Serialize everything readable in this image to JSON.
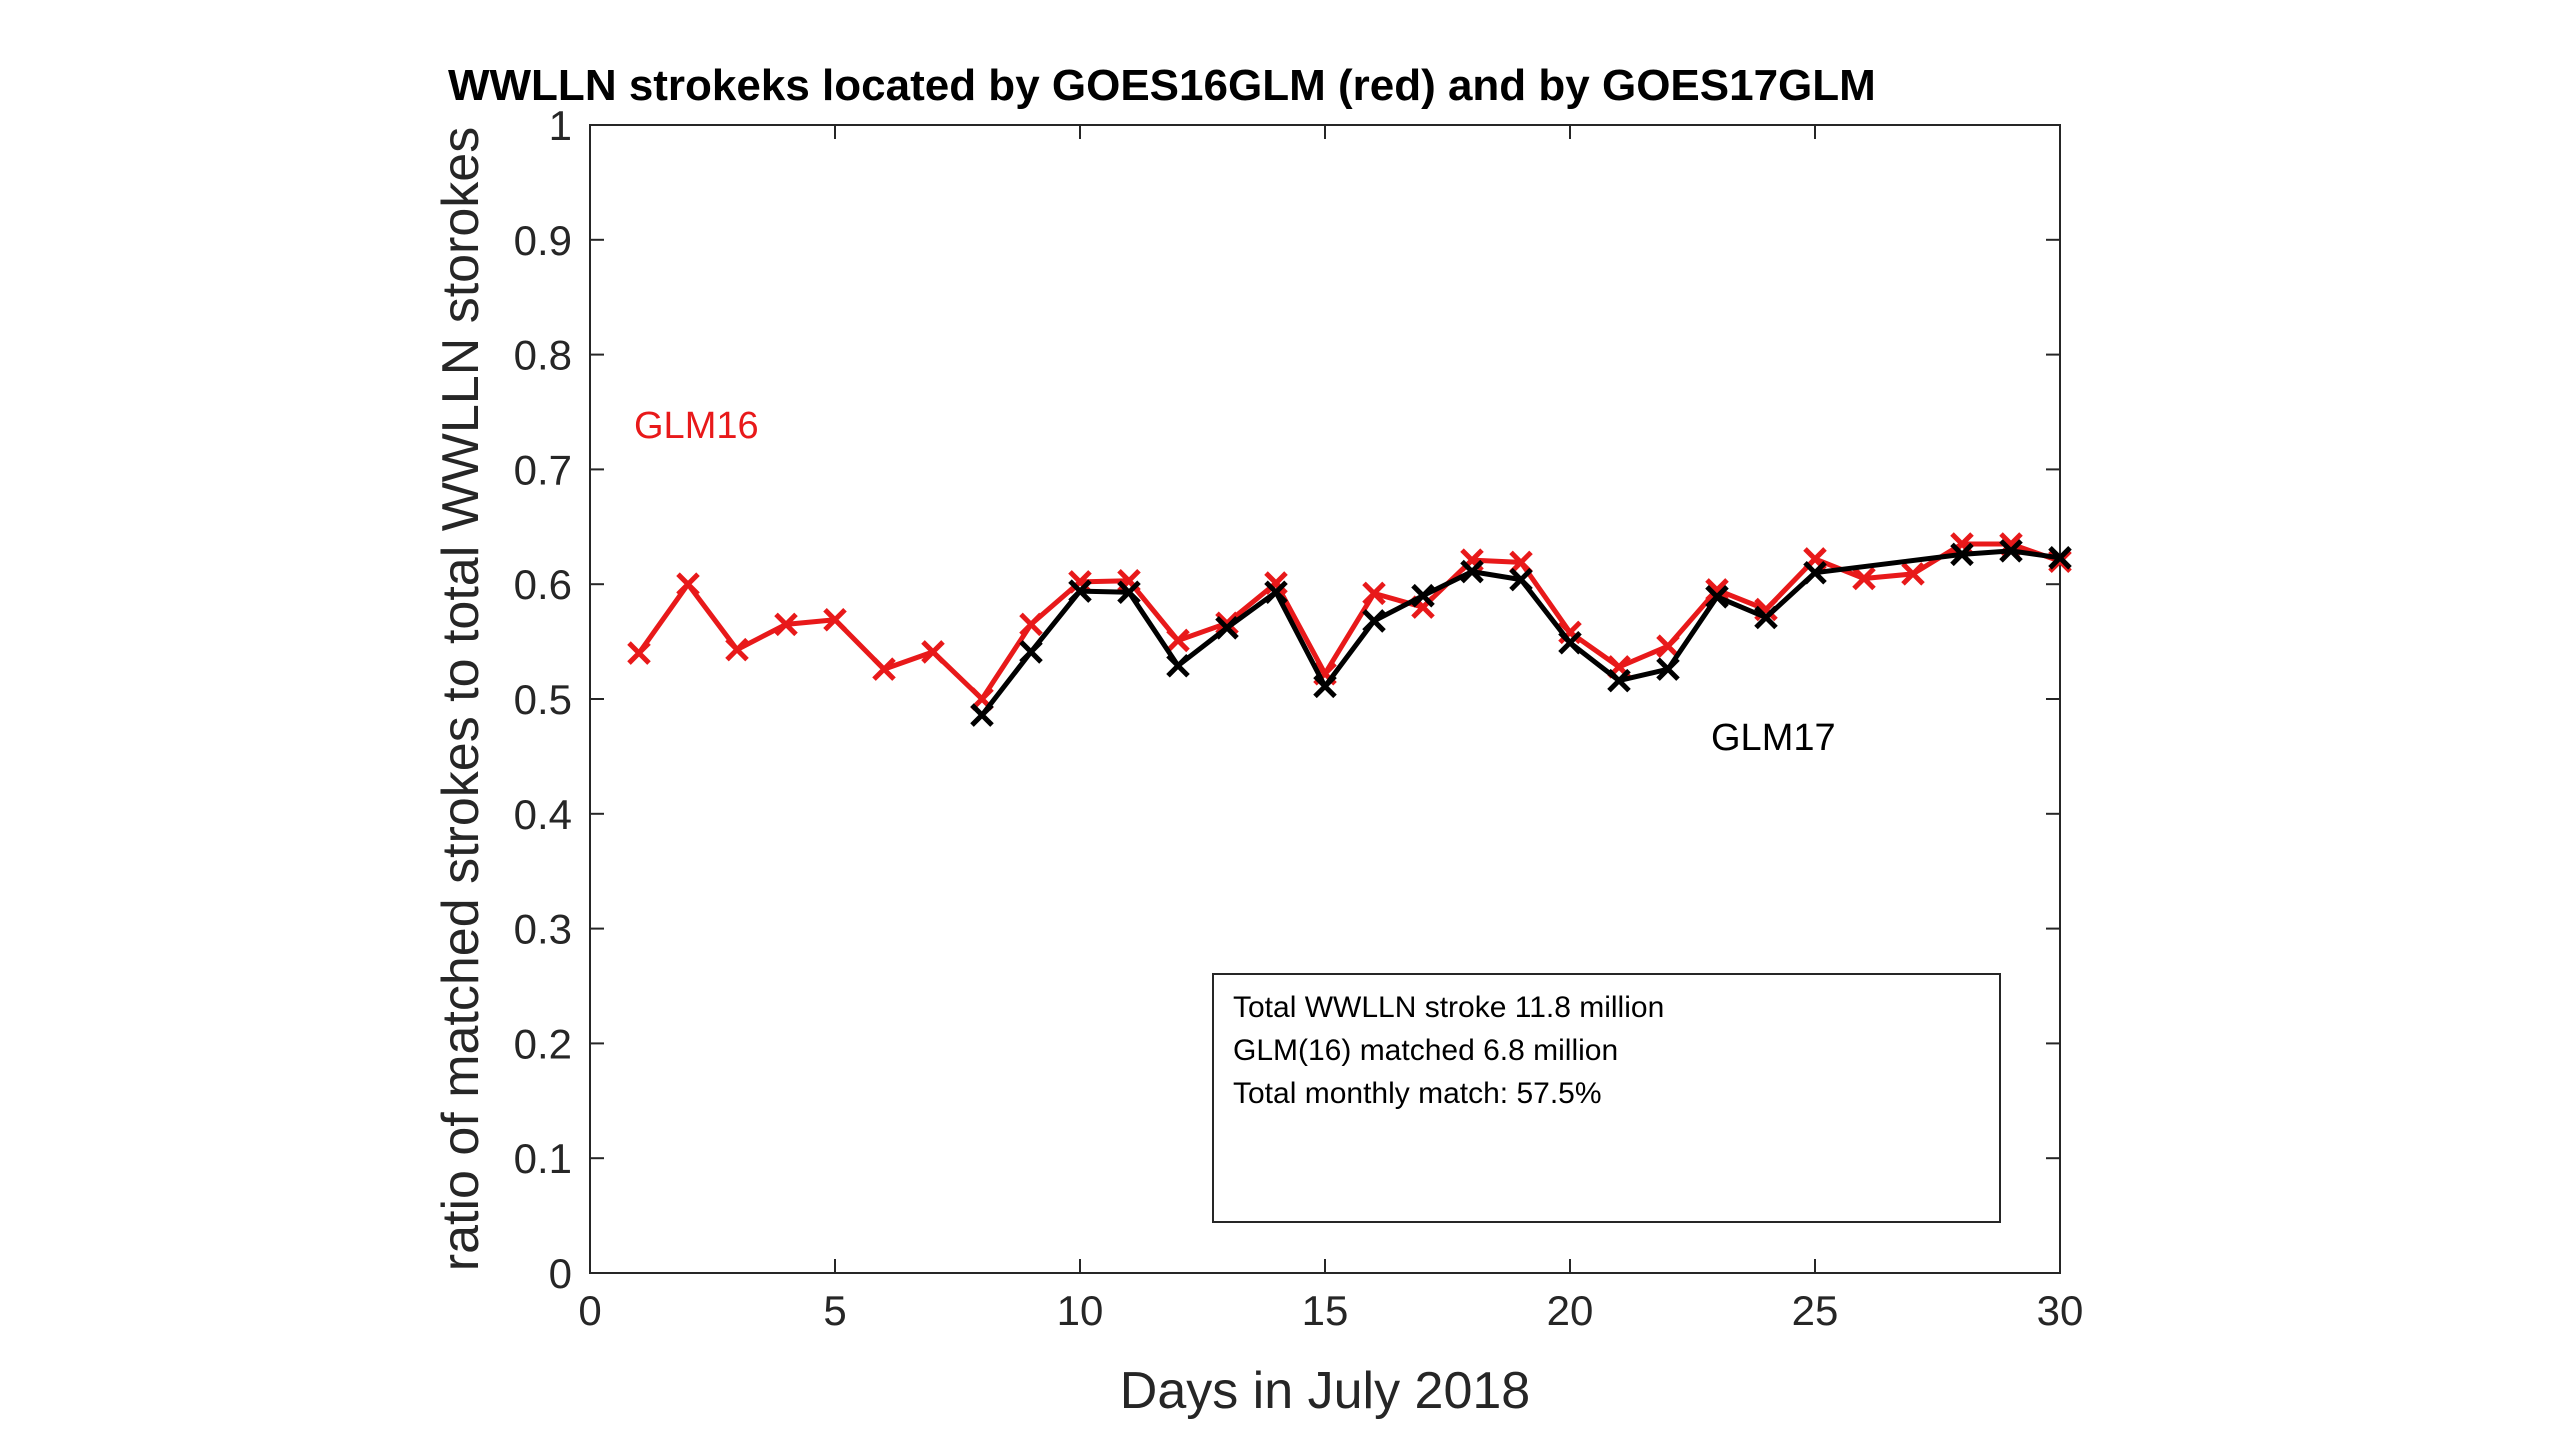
{
  "chart_data": {
    "type": "line",
    "title": "WWLLN strokeks located by GOES16GLM (red) and by GOES17GLM",
    "xlabel": "Days in July 2018",
    "ylabel": "ratio of matched strokes to total WWLLN storokes",
    "xlim": [
      0,
      30
    ],
    "ylim": [
      0,
      1
    ],
    "x_ticks": [
      "0",
      "5",
      "10",
      "15",
      "20",
      "25",
      "30"
    ],
    "y_ticks": [
      "0",
      "0.1",
      "0.2",
      "0.3",
      "0.4",
      "0.5",
      "0.6",
      "0.7",
      "0.8",
      "0.9",
      "1"
    ],
    "grid": false,
    "series": [
      {
        "name": "GLM16",
        "color": "#e8191a",
        "marker": "x",
        "x": [
          1,
          2,
          3,
          4,
          5,
          6,
          7,
          8,
          9,
          10,
          11,
          12,
          13,
          14,
          15,
          16,
          17,
          18,
          19,
          20,
          21,
          22,
          23,
          24,
          25,
          26,
          27,
          28,
          29,
          30
        ],
        "y": [
          0.54,
          0.6,
          0.543,
          0.565,
          0.569,
          0.526,
          0.541,
          0.5,
          0.565,
          0.602,
          0.603,
          0.551,
          0.566,
          0.601,
          0.522,
          0.592,
          0.58,
          0.621,
          0.619,
          0.558,
          0.528,
          0.546,
          0.595,
          0.578,
          0.622,
          0.605,
          0.609,
          0.635,
          0.635,
          0.62
        ]
      },
      {
        "name": "GLM17",
        "color": "#000000",
        "marker": "x",
        "x": [
          8,
          9,
          10,
          11,
          12,
          13,
          14,
          15,
          16,
          17,
          18,
          19,
          20,
          21,
          22,
          23,
          24,
          25,
          28,
          29,
          30
        ],
        "y": [
          0.486,
          0.541,
          0.594,
          0.593,
          0.529,
          0.562,
          0.593,
          0.511,
          0.568,
          0.59,
          0.611,
          0.604,
          0.549,
          0.516,
          0.526,
          0.589,
          0.571,
          0.61,
          0.626,
          0.629,
          0.623
        ]
      }
    ],
    "annotations": [
      {
        "text": "GLM16",
        "color": "#e8191a"
      },
      {
        "text": "GLM17",
        "color": "#000000"
      }
    ],
    "info_box": [
      "Total WWLLN stroke 11.8 million",
      "GLM(16) matched 6.8 million",
      "Total monthly match: 57.5%"
    ]
  }
}
